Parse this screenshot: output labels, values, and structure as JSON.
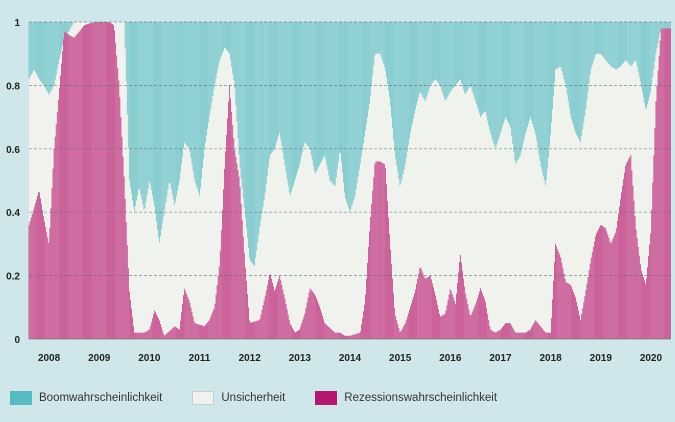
{
  "chart_data": {
    "type": "area",
    "title": "",
    "xlabel": "",
    "ylabel": "",
    "ylim": [
      0,
      1
    ],
    "yticks": [
      0,
      0.2,
      0.4,
      0.6,
      0.8,
      1
    ],
    "ytick_labels": [
      "0",
      "0.2",
      "0.4",
      "0.6",
      "0.8",
      "1"
    ],
    "xlim": [
      2007.6,
      2020.4
    ],
    "xticks": [
      2008,
      2009,
      2010,
      2011,
      2012,
      2013,
      2014,
      2015,
      2016,
      2017,
      2018,
      2019,
      2020
    ],
    "xtick_labels": [
      "2008",
      "2009",
      "2010",
      "2011",
      "2012",
      "2013",
      "2014",
      "2015",
      "2016",
      "2017",
      "2018",
      "2019",
      "2020"
    ],
    "grid": "horizontal dashed",
    "legend_position": "bottom",
    "stacking": "Rezession at bottom, Unsicherheit middle, Boom on top (sum = 1)",
    "series": [
      {
        "name": "Rezessionswahrscheinlichkeit",
        "color": "#b8176f",
        "points": [
          [
            2007.6,
            0.36
          ],
          [
            2007.8,
            0.47
          ],
          [
            2007.9,
            0.38
          ],
          [
            2008.0,
            0.3
          ],
          [
            2008.1,
            0.6
          ],
          [
            2008.3,
            0.97
          ],
          [
            2008.5,
            0.95
          ],
          [
            2008.7,
            0.99
          ],
          [
            2008.9,
            1.0
          ],
          [
            2009.0,
            1.0
          ],
          [
            2009.2,
            1.0
          ],
          [
            2009.3,
            0.99
          ],
          [
            2009.4,
            0.8
          ],
          [
            2009.5,
            0.5
          ],
          [
            2009.6,
            0.15
          ],
          [
            2009.7,
            0.02
          ],
          [
            2009.9,
            0.02
          ],
          [
            2010.0,
            0.03
          ],
          [
            2010.1,
            0.09
          ],
          [
            2010.2,
            0.06
          ],
          [
            2010.3,
            0.01
          ],
          [
            2010.5,
            0.04
          ],
          [
            2010.6,
            0.03
          ],
          [
            2010.7,
            0.16
          ],
          [
            2010.8,
            0.12
          ],
          [
            2010.9,
            0.05
          ],
          [
            2011.1,
            0.04
          ],
          [
            2011.2,
            0.06
          ],
          [
            2011.3,
            0.1
          ],
          [
            2011.4,
            0.24
          ],
          [
            2011.5,
            0.55
          ],
          [
            2011.6,
            0.8
          ],
          [
            2011.7,
            0.6
          ],
          [
            2011.8,
            0.5
          ],
          [
            2011.9,
            0.25
          ],
          [
            2012.0,
            0.05
          ],
          [
            2012.2,
            0.06
          ],
          [
            2012.3,
            0.13
          ],
          [
            2012.4,
            0.21
          ],
          [
            2012.5,
            0.15
          ],
          [
            2012.6,
            0.2
          ],
          [
            2012.7,
            0.13
          ],
          [
            2012.8,
            0.05
          ],
          [
            2012.9,
            0.02
          ],
          [
            2013.0,
            0.03
          ],
          [
            2013.1,
            0.08
          ],
          [
            2013.2,
            0.16
          ],
          [
            2013.3,
            0.14
          ],
          [
            2013.4,
            0.1
          ],
          [
            2013.5,
            0.05
          ],
          [
            2013.7,
            0.02
          ],
          [
            2013.8,
            0.02
          ],
          [
            2013.9,
            0.01
          ],
          [
            2014.0,
            0.01
          ],
          [
            2014.2,
            0.02
          ],
          [
            2014.3,
            0.12
          ],
          [
            2014.4,
            0.36
          ],
          [
            2014.5,
            0.56
          ],
          [
            2014.6,
            0.56
          ],
          [
            2014.7,
            0.55
          ],
          [
            2014.8,
            0.3
          ],
          [
            2014.9,
            0.08
          ],
          [
            2015.0,
            0.02
          ],
          [
            2015.1,
            0.05
          ],
          [
            2015.2,
            0.1
          ],
          [
            2015.3,
            0.15
          ],
          [
            2015.4,
            0.23
          ],
          [
            2015.5,
            0.19
          ],
          [
            2015.6,
            0.2
          ],
          [
            2015.7,
            0.14
          ],
          [
            2015.8,
            0.07
          ],
          [
            2015.9,
            0.08
          ],
          [
            2016.0,
            0.16
          ],
          [
            2016.1,
            0.11
          ],
          [
            2016.2,
            0.27
          ],
          [
            2016.3,
            0.15
          ],
          [
            2016.4,
            0.07
          ],
          [
            2016.5,
            0.11
          ],
          [
            2016.6,
            0.16
          ],
          [
            2016.7,
            0.12
          ],
          [
            2016.8,
            0.03
          ],
          [
            2016.9,
            0.02
          ],
          [
            2017.0,
            0.03
          ],
          [
            2017.1,
            0.05
          ],
          [
            2017.2,
            0.05
          ],
          [
            2017.3,
            0.02
          ],
          [
            2017.5,
            0.02
          ],
          [
            2017.6,
            0.03
          ],
          [
            2017.7,
            0.06
          ],
          [
            2017.8,
            0.04
          ],
          [
            2017.9,
            0.02
          ],
          [
            2018.0,
            0.02
          ],
          [
            2018.1,
            0.3
          ],
          [
            2018.2,
            0.26
          ],
          [
            2018.3,
            0.18
          ],
          [
            2018.4,
            0.17
          ],
          [
            2018.5,
            0.13
          ],
          [
            2018.6,
            0.06
          ],
          [
            2018.7,
            0.15
          ],
          [
            2018.8,
            0.25
          ],
          [
            2018.9,
            0.33
          ],
          [
            2019.0,
            0.36
          ],
          [
            2019.1,
            0.35
          ],
          [
            2019.2,
            0.3
          ],
          [
            2019.3,
            0.34
          ],
          [
            2019.4,
            0.45
          ],
          [
            2019.5,
            0.55
          ],
          [
            2019.6,
            0.58
          ],
          [
            2019.7,
            0.35
          ],
          [
            2019.8,
            0.22
          ],
          [
            2019.9,
            0.17
          ],
          [
            2020.0,
            0.34
          ],
          [
            2020.1,
            0.75
          ],
          [
            2020.2,
            0.98
          ]
        ]
      },
      {
        "name": "Unsicherheit",
        "color": "#f0f2ee"
      },
      {
        "name": "Boomwahrscheinlichkeit",
        "color": "#55bcc3",
        "points": [
          [
            2007.6,
            0.18
          ],
          [
            2007.7,
            0.15
          ],
          [
            2007.8,
            0.18
          ],
          [
            2007.9,
            0.2
          ],
          [
            2008.0,
            0.23
          ],
          [
            2008.1,
            0.2
          ],
          [
            2008.2,
            0.12
          ],
          [
            2008.3,
            0.05
          ],
          [
            2008.4,
            0.03
          ],
          [
            2008.5,
            0.0
          ],
          [
            2009.5,
            0.0
          ],
          [
            2009.6,
            0.5
          ],
          [
            2009.7,
            0.6
          ],
          [
            2009.8,
            0.52
          ],
          [
            2009.9,
            0.6
          ],
          [
            2010.0,
            0.5
          ],
          [
            2010.1,
            0.58
          ],
          [
            2010.2,
            0.7
          ],
          [
            2010.3,
            0.6
          ],
          [
            2010.4,
            0.5
          ],
          [
            2010.5,
            0.58
          ],
          [
            2010.6,
            0.5
          ],
          [
            2010.7,
            0.38
          ],
          [
            2010.8,
            0.4
          ],
          [
            2010.9,
            0.5
          ],
          [
            2011.0,
            0.55
          ],
          [
            2011.1,
            0.4
          ],
          [
            2011.2,
            0.3
          ],
          [
            2011.3,
            0.2
          ],
          [
            2011.4,
            0.12
          ],
          [
            2011.5,
            0.08
          ],
          [
            2011.6,
            0.1
          ],
          [
            2011.7,
            0.2
          ],
          [
            2011.8,
            0.45
          ],
          [
            2011.9,
            0.6
          ],
          [
            2012.0,
            0.75
          ],
          [
            2012.1,
            0.77
          ],
          [
            2012.2,
            0.65
          ],
          [
            2012.3,
            0.55
          ],
          [
            2012.4,
            0.42
          ],
          [
            2012.5,
            0.4
          ],
          [
            2012.6,
            0.35
          ],
          [
            2012.7,
            0.45
          ],
          [
            2012.8,
            0.55
          ],
          [
            2012.9,
            0.5
          ],
          [
            2013.0,
            0.45
          ],
          [
            2013.1,
            0.38
          ],
          [
            2013.2,
            0.4
          ],
          [
            2013.3,
            0.48
          ],
          [
            2013.4,
            0.45
          ],
          [
            2013.5,
            0.42
          ],
          [
            2013.6,
            0.5
          ],
          [
            2013.7,
            0.52
          ],
          [
            2013.8,
            0.4
          ],
          [
            2013.9,
            0.55
          ],
          [
            2014.0,
            0.6
          ],
          [
            2014.1,
            0.55
          ],
          [
            2014.2,
            0.45
          ],
          [
            2014.3,
            0.35
          ],
          [
            2014.4,
            0.25
          ],
          [
            2014.5,
            0.1
          ],
          [
            2014.6,
            0.1
          ],
          [
            2014.7,
            0.15
          ],
          [
            2014.8,
            0.25
          ],
          [
            2014.9,
            0.42
          ],
          [
            2015.0,
            0.52
          ],
          [
            2015.1,
            0.45
          ],
          [
            2015.2,
            0.35
          ],
          [
            2015.3,
            0.28
          ],
          [
            2015.4,
            0.22
          ],
          [
            2015.5,
            0.25
          ],
          [
            2015.6,
            0.2
          ],
          [
            2015.7,
            0.18
          ],
          [
            2015.8,
            0.2
          ],
          [
            2015.9,
            0.25
          ],
          [
            2016.0,
            0.22
          ],
          [
            2016.1,
            0.2
          ],
          [
            2016.2,
            0.18
          ],
          [
            2016.3,
            0.23
          ],
          [
            2016.4,
            0.2
          ],
          [
            2016.5,
            0.25
          ],
          [
            2016.6,
            0.3
          ],
          [
            2016.7,
            0.28
          ],
          [
            2016.8,
            0.35
          ],
          [
            2016.9,
            0.4
          ],
          [
            2017.0,
            0.35
          ],
          [
            2017.1,
            0.3
          ],
          [
            2017.2,
            0.33
          ],
          [
            2017.3,
            0.45
          ],
          [
            2017.4,
            0.42
          ],
          [
            2017.5,
            0.35
          ],
          [
            2017.6,
            0.3
          ],
          [
            2017.7,
            0.35
          ],
          [
            2017.8,
            0.45
          ],
          [
            2017.9,
            0.52
          ],
          [
            2018.0,
            0.35
          ],
          [
            2018.1,
            0.15
          ],
          [
            2018.2,
            0.14
          ],
          [
            2018.3,
            0.2
          ],
          [
            2018.4,
            0.3
          ],
          [
            2018.5,
            0.35
          ],
          [
            2018.6,
            0.38
          ],
          [
            2018.7,
            0.28
          ],
          [
            2018.8,
            0.15
          ],
          [
            2018.9,
            0.1
          ],
          [
            2019.0,
            0.1
          ],
          [
            2019.1,
            0.12
          ],
          [
            2019.2,
            0.14
          ],
          [
            2019.3,
            0.15
          ],
          [
            2019.4,
            0.14
          ],
          [
            2019.5,
            0.12
          ],
          [
            2019.6,
            0.14
          ],
          [
            2019.7,
            0.12
          ],
          [
            2019.8,
            0.2
          ],
          [
            2019.9,
            0.28
          ],
          [
            2020.0,
            0.22
          ],
          [
            2020.1,
            0.1
          ],
          [
            2020.2,
            0.02
          ]
        ]
      }
    ]
  },
  "legend": {
    "items": [
      {
        "label": "Boomwahrscheinlichkeit",
        "color": "#55bcc3"
      },
      {
        "label": "Unsicherheit",
        "color": "#f0f2ee"
      },
      {
        "label": "Rezessionswahrscheinlichkeit",
        "color": "#b8176f"
      }
    ]
  }
}
